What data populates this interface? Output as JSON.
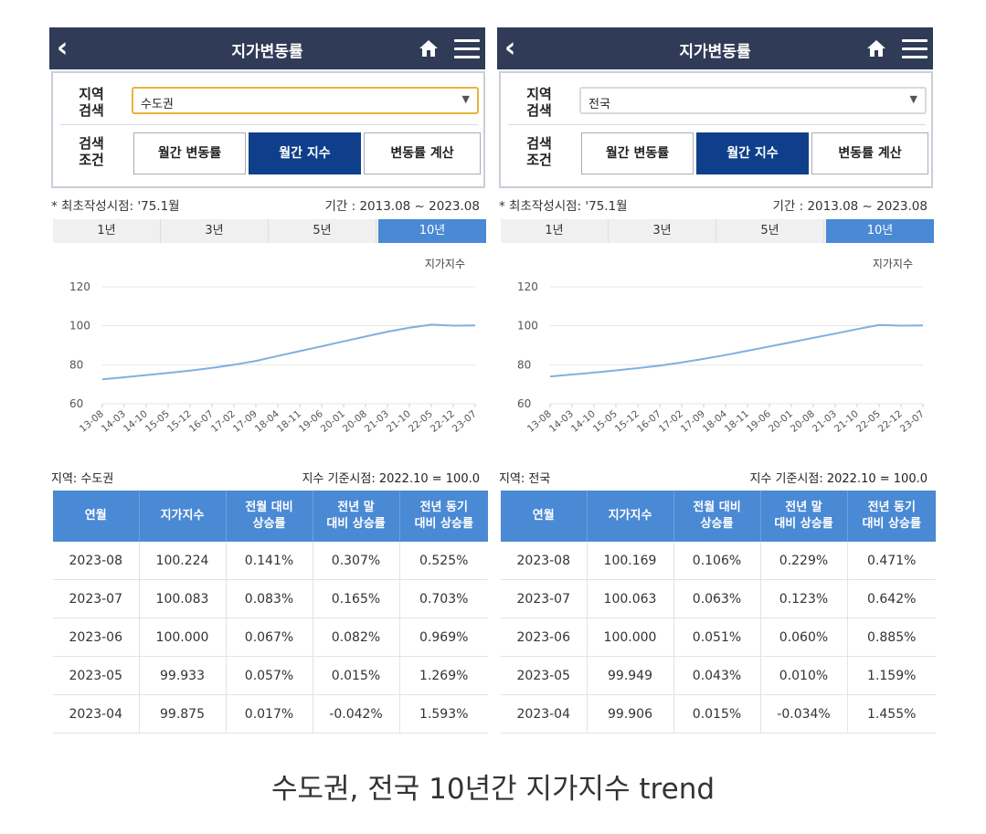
{
  "panels": [
    {
      "app_title": "지가변동률",
      "region_label": "지역\n검색",
      "condition_label": "검색\n조건",
      "region_value": "수도권",
      "buttons": [
        "월간 변동률",
        "월간 지수",
        "변동률 계산"
      ],
      "first_published": "* 최초작성시점: '75.1월",
      "period": "기간 : 2013.08 ~ 2023.08",
      "range_tabs": [
        "1년",
        "3년",
        "5년",
        "10년"
      ],
      "active_tab": "10년",
      "region_line": "지역: 수도권",
      "base_line": "지수 기준시점: 2022.10 = 100.0",
      "table": {
        "headers": [
          "연월",
          "지가지수",
          "전월 대비\n상승률",
          "전년 말\n대비 상승률",
          "전년 동기\n대비 상승률"
        ],
        "rows": [
          [
            "2023-08",
            "100.224",
            "0.141%",
            "0.307%",
            "0.525%"
          ],
          [
            "2023-07",
            "100.083",
            "0.083%",
            "0.165%",
            "0.703%"
          ],
          [
            "2023-06",
            "100.000",
            "0.067%",
            "0.082%",
            "0.969%"
          ],
          [
            "2023-05",
            "99.933",
            "0.057%",
            "0.015%",
            "1.269%"
          ],
          [
            "2023-04",
            "99.875",
            "0.017%",
            "-0.042%",
            "1.593%"
          ]
        ]
      }
    },
    {
      "app_title": "지가변동률",
      "region_label": "지역\n검색",
      "condition_label": "검색\n조건",
      "region_value": "전국",
      "buttons": [
        "월간 변동률",
        "월간 지수",
        "변동률 계산"
      ],
      "first_published": "* 최초작성시점: '75.1월",
      "period": "기간 : 2013.08 ~ 2023.08",
      "range_tabs": [
        "1년",
        "3년",
        "5년",
        "10년"
      ],
      "active_tab": "10년",
      "region_line": "지역: 전국",
      "base_line": "지수 기준시점: 2022.10 = 100.0",
      "table": {
        "headers": [
          "연월",
          "지가지수",
          "전월 대비\n상승률",
          "전년 말\n대비 상승률",
          "전년 동기\n대비 상승률"
        ],
        "rows": [
          [
            "2023-08",
            "100.169",
            "0.106%",
            "0.229%",
            "0.471%"
          ],
          [
            "2023-07",
            "100.063",
            "0.063%",
            "0.123%",
            "0.642%"
          ],
          [
            "2023-06",
            "100.000",
            "0.051%",
            "0.060%",
            "0.885%"
          ],
          [
            "2023-05",
            "99.949",
            "0.043%",
            "0.010%",
            "1.159%"
          ],
          [
            "2023-04",
            "99.906",
            "0.015%",
            "-0.034%",
            "1.455%"
          ]
        ]
      }
    }
  ],
  "caption": "수도권, 전국 10년간 지가지수 trend",
  "colors": {
    "appbar": "#2f3b57",
    "active_button": "#0f3f8a",
    "accent_blue": "#4a89d4",
    "line": "#7fb0e0",
    "positive": "#d9534f",
    "negative": "#2a62b0"
  },
  "icons": [
    "back-arrow-icon",
    "home-icon",
    "hamburger-menu-icon",
    "chevron-down-icon"
  ],
  "chart_data": [
    {
      "type": "line",
      "series_label": "지가지수",
      "ylim": [
        60,
        120
      ],
      "yticks": [
        60,
        80,
        100,
        120
      ],
      "x": [
        "13-08",
        "14-03",
        "14-10",
        "15-05",
        "15-12",
        "16-07",
        "17-02",
        "17-09",
        "18-04",
        "18-11",
        "19-06",
        "20-01",
        "20-08",
        "21-03",
        "21-10",
        "22-05",
        "22-12",
        "23-07"
      ],
      "values": [
        72.5,
        73.6,
        74.7,
        75.8,
        77.0,
        78.4,
        80.0,
        82.0,
        84.5,
        87.0,
        89.5,
        92.0,
        94.5,
        97.0,
        99.0,
        100.6,
        100.1,
        100.2
      ]
    },
    {
      "type": "line",
      "series_label": "지가지수",
      "ylim": [
        60,
        120
      ],
      "yticks": [
        60,
        80,
        100,
        120
      ],
      "x": [
        "13-08",
        "14-03",
        "14-10",
        "15-05",
        "15-12",
        "16-07",
        "17-02",
        "17-09",
        "18-04",
        "18-11",
        "19-06",
        "20-01",
        "20-08",
        "21-03",
        "21-10",
        "22-05",
        "22-12",
        "23-07"
      ],
      "values": [
        74.0,
        75.0,
        76.0,
        77.1,
        78.3,
        79.6,
        81.2,
        83.0,
        85.0,
        87.2,
        89.4,
        91.6,
        93.8,
        96.0,
        98.3,
        100.4,
        100.1,
        100.2
      ]
    }
  ]
}
